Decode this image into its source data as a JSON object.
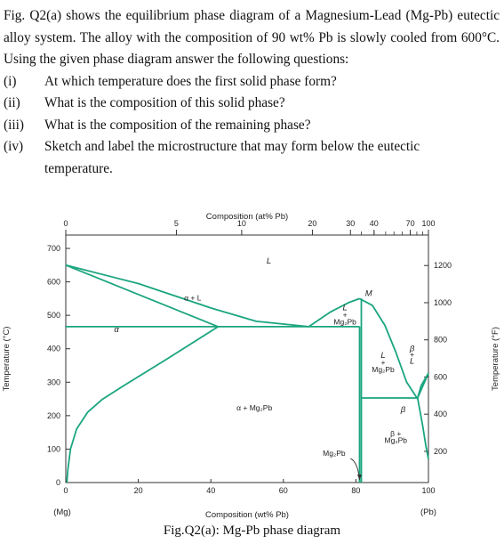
{
  "question": {
    "intro": "Fig. Q2(a) shows the equilibrium phase diagram of a Magnesium-Lead (Mg-Pb) eutectic alloy system. The alloy with the composition of 90 wt% Pb is slowly cooled from 600°C. Using the given phase diagram answer the following questions:",
    "items": [
      {
        "num": "(i)",
        "text": "At which temperature does the first solid phase form?"
      },
      {
        "num": "(ii)",
        "text": "What is the composition of this solid phase?"
      },
      {
        "num": "(iii)",
        "text": "What is the composition of the remaining phase?"
      },
      {
        "num": "(iv)",
        "text": "Sketch and label the microstructure that may form below the eutectic"
      }
    ],
    "item4_cont": "temperature."
  },
  "figure": {
    "caption": "Fig.Q2(a): Mg-Pb phase diagram",
    "line_color": "#1aa57f"
  },
  "chart_data": {
    "type": "phase-diagram",
    "top_axis_label": "Composition (at% Pb)",
    "top_ticks": [
      {
        "label": "0",
        "wt": 0
      },
      {
        "label": "5",
        "wt": 30.5
      },
      {
        "label": "10",
        "wt": 48.5
      },
      {
        "label": "20",
        "wt": 68
      },
      {
        "label": "30",
        "wt": 78.5
      },
      {
        "label": "40",
        "wt": 85
      },
      {
        "label": "70",
        "wt": 95
      },
      {
        "label": "100",
        "wt": 100
      }
    ],
    "top_minor_wt": [
      81.5,
      85,
      88.2,
      90.5,
      92.8,
      95,
      96.8,
      98.4
    ],
    "bottom_axis_label": "Composition (wt% Pb)",
    "bottom_ticks": [
      "0",
      "20",
      "40",
      "60",
      "80",
      "100"
    ],
    "bottom_tick_values": [
      0,
      20,
      40,
      60,
      80,
      100
    ],
    "bottom_sublabels": {
      "left": "(Mg)",
      "right": "(Pb)"
    },
    "left_axis_label": "Temperature (°C)",
    "left_ticks": [
      0,
      100,
      200,
      300,
      400,
      500,
      600,
      700
    ],
    "right_axis_label": "Temperature (°F)",
    "right_ticks": [
      200,
      400,
      600,
      800,
      1000,
      1200
    ],
    "xlim": [
      0,
      100
    ],
    "ylim": [
      0,
      740
    ],
    "region_labels": [
      {
        "text": "L",
        "wt": 56,
        "c": 655,
        "italic": true
      },
      {
        "text": "α + L",
        "wt": 35,
        "c": 545,
        "italic": false
      },
      {
        "text": "α",
        "wt": 14,
        "c": 450,
        "italic": true
      },
      {
        "text": "α + Mg₂Pb",
        "wt": 52,
        "c": 215,
        "italic": false
      },
      {
        "text": "L",
        "wt": 77,
        "c": 515,
        "italic": true
      },
      {
        "text": "+",
        "wt": 77,
        "c": 494,
        "italic": false
      },
      {
        "text": "Mg₂Pb",
        "wt": 77,
        "c": 473,
        "italic": false
      },
      {
        "text": "M",
        "wt": 83.5,
        "c": 558,
        "italic": true
      },
      {
        "text": "L",
        "wt": 87.5,
        "c": 372,
        "italic": true
      },
      {
        "text": "+",
        "wt": 87.5,
        "c": 351,
        "italic": false
      },
      {
        "text": "Mg₂Pb",
        "wt": 87.5,
        "c": 330,
        "italic": false
      },
      {
        "text": "β",
        "wt": 95.5,
        "c": 393,
        "italic": true
      },
      {
        "text": "+",
        "wt": 95.5,
        "c": 375,
        "italic": false
      },
      {
        "text": "L",
        "wt": 95.5,
        "c": 355,
        "italic": true
      },
      {
        "text": "β",
        "wt": 93,
        "c": 210,
        "italic": true
      },
      {
        "text": "β +",
        "wt": 91,
        "c": 138,
        "italic": false
      },
      {
        "text": "Mg₂Pb",
        "wt": 91,
        "c": 118,
        "italic": false
      },
      {
        "text": "Mg₂Pb",
        "wt": 74,
        "c": 80,
        "italic": false
      }
    ],
    "phase_lines": [
      {
        "name": "liquidus-left",
        "points": [
          [
            0,
            650
          ],
          [
            20,
            595
          ],
          [
            40,
            522
          ],
          [
            52.5,
            482
          ],
          [
            67,
            466
          ]
        ]
      },
      {
        "name": "solidus-alpha",
        "points": [
          [
            0,
            650
          ],
          [
            42,
            466
          ]
        ]
      },
      {
        "name": "eutectic-left",
        "points": [
          [
            0,
            466
          ],
          [
            81,
            466
          ]
        ]
      },
      {
        "name": "solvus-alpha",
        "points": [
          [
            0.3,
            0
          ],
          [
            0.6,
            40
          ],
          [
            1.3,
            100
          ],
          [
            3,
            160
          ],
          [
            6,
            210
          ],
          [
            10,
            248
          ],
          [
            16,
            290
          ],
          [
            28,
            370
          ],
          [
            42,
            466
          ]
        ]
      },
      {
        "name": "liquidus-mg2pb-left",
        "points": [
          [
            67,
            466
          ],
          [
            73,
            510
          ],
          [
            78,
            538
          ],
          [
            81,
            550
          ]
        ]
      },
      {
        "name": "liquidus-mg2pb-right",
        "points": [
          [
            81,
            550
          ],
          [
            84.5,
            530
          ],
          [
            88,
            470
          ],
          [
            91,
            390
          ],
          [
            94,
            300
          ],
          [
            97,
            250
          ]
        ]
      },
      {
        "name": "mg2pb-left",
        "points": [
          [
            81,
            0
          ],
          [
            81,
            466
          ]
        ]
      },
      {
        "name": "mg2pb-right",
        "points": [
          [
            81.5,
            0
          ],
          [
            81.5,
            550
          ]
        ]
      },
      {
        "name": "eutectic-right",
        "points": [
          [
            81.5,
            253
          ],
          [
            97,
            253
          ]
        ]
      },
      {
        "name": "pb-liquidus",
        "points": [
          [
            97,
            253
          ],
          [
            100,
            327
          ]
        ]
      },
      {
        "name": "beta-solidus",
        "points": [
          [
            97,
            253
          ],
          [
            98,
            290
          ],
          [
            100,
            327
          ]
        ]
      },
      {
        "name": "beta-solvus",
        "points": [
          [
            97,
            253
          ],
          [
            98.4,
            170
          ],
          [
            99.3,
            110
          ],
          [
            100,
            70
          ]
        ]
      }
    ],
    "mg2pb_arrow": {
      "from": [
        78.5,
        72
      ],
      "to": [
        81,
        8
      ]
    }
  }
}
